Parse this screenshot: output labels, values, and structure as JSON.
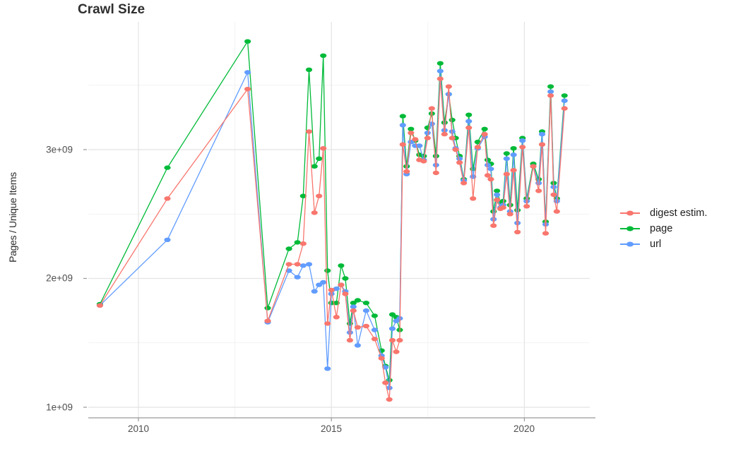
{
  "title": "Crawl Size",
  "y_axis": {
    "label": "Pages / Unique Items",
    "tick_labels": [
      "1e+09",
      "2e+09",
      "3e+09"
    ],
    "tick_values": [
      1,
      2,
      3
    ],
    "minor_tick_values": [
      1.5,
      2.5,
      3.5
    ]
  },
  "x_axis": {
    "tick_labels": [
      "2010",
      "2015",
      "2020"
    ],
    "tick_values": [
      2010,
      2015,
      2020
    ],
    "minor_tick_values": [
      2012.5,
      2017.5
    ]
  },
  "legend": [
    {
      "label": "digest estim.",
      "color": "#F8766D"
    },
    {
      "label": "page",
      "color": "#00BA38"
    },
    {
      "label": "url",
      "color": "#619CFF"
    }
  ],
  "colors": {
    "grid_major": "#e4e4e4",
    "grid_minor": "#efefef",
    "axis_line": "#999999",
    "tick": "#9a9a9a"
  },
  "chart_data": {
    "type": "line",
    "title": "Crawl Size",
    "xlabel": "",
    "ylabel": "Pages / Unique Items",
    "x_unit": "decimal year (crawl date)",
    "y_unit": "1e+09 (billions of pages / unique items)",
    "xlim": [
      2008.7,
      2021.7
    ],
    "ylim": [
      0.92,
      3.99
    ],
    "grid": true,
    "legend_position": "right",
    "marker": "point",
    "x": [
      2009.0,
      2010.75,
      2012.83,
      2013.35,
      2013.9,
      2014.12,
      2014.27,
      2014.42,
      2014.56,
      2014.68,
      2014.79,
      2014.9,
      2015.0,
      2015.13,
      2015.25,
      2015.36,
      2015.48,
      2015.57,
      2015.68,
      2015.9,
      2016.12,
      2016.3,
      2016.4,
      2016.5,
      2016.58,
      2016.68,
      2016.77,
      2016.85,
      2016.95,
      2017.06,
      2017.17,
      2017.28,
      2017.39,
      2017.49,
      2017.6,
      2017.71,
      2017.82,
      2017.93,
      2018.04,
      2018.13,
      2018.22,
      2018.32,
      2018.43,
      2018.56,
      2018.67,
      2018.79,
      2018.97,
      2019.05,
      2019.13,
      2019.2,
      2019.29,
      2019.38,
      2019.45,
      2019.54,
      2019.63,
      2019.72,
      2019.82,
      2019.95,
      2020.06,
      2020.23,
      2020.37,
      2020.46,
      2020.55,
      2020.68,
      2020.76,
      2020.84,
      2021.04
    ],
    "series": [
      {
        "name": "digest estim.",
        "color": "#F8766D",
        "values": [
          1.79,
          2.62,
          3.47,
          1.67,
          2.11,
          2.11,
          2.27,
          3.14,
          2.51,
          2.64,
          3.01,
          1.65,
          1.91,
          1.7,
          1.95,
          1.88,
          1.52,
          1.75,
          1.62,
          1.63,
          1.53,
          1.38,
          1.19,
          1.06,
          1.52,
          1.43,
          1.52,
          3.04,
          2.83,
          3.13,
          3.08,
          2.92,
          2.91,
          3.09,
          3.32,
          2.82,
          3.55,
          3.12,
          3.49,
          3.09,
          3.0,
          2.9,
          2.74,
          3.17,
          2.62,
          3.02,
          3.12,
          2.8,
          2.77,
          2.41,
          2.61,
          2.54,
          2.55,
          2.81,
          2.5,
          2.84,
          2.36,
          3.02,
          2.56,
          2.87,
          2.68,
          3.04,
          2.35,
          3.42,
          2.65,
          2.52,
          3.32
        ]
      },
      {
        "name": "page",
        "color": "#00BA38",
        "values": [
          1.8,
          2.86,
          3.84,
          1.77,
          2.23,
          2.28,
          2.64,
          3.62,
          2.87,
          2.93,
          3.73,
          2.06,
          1.81,
          1.81,
          2.1,
          2.0,
          1.65,
          1.81,
          1.83,
          1.81,
          1.71,
          1.44,
          1.32,
          1.21,
          1.72,
          1.7,
          1.6,
          3.26,
          2.87,
          3.16,
          3.07,
          2.96,
          2.95,
          3.17,
          3.28,
          2.95,
          3.67,
          3.21,
          3.43,
          3.23,
          3.09,
          2.95,
          2.77,
          3.27,
          2.85,
          3.06,
          3.16,
          2.92,
          2.89,
          2.52,
          2.68,
          2.59,
          2.6,
          2.97,
          2.57,
          3.01,
          2.53,
          3.09,
          2.62,
          2.89,
          2.77,
          3.14,
          2.44,
          3.49,
          2.74,
          2.62,
          3.42
        ]
      },
      {
        "name": "url",
        "color": "#619CFF",
        "values": [
          1.79,
          2.3,
          3.6,
          1.66,
          2.06,
          2.01,
          2.1,
          2.11,
          1.9,
          1.95,
          1.97,
          1.3,
          1.88,
          1.92,
          1.95,
          1.9,
          1.58,
          1.78,
          1.48,
          1.75,
          1.6,
          1.4,
          1.31,
          1.15,
          1.61,
          1.67,
          1.69,
          3.19,
          2.81,
          3.06,
          3.03,
          3.03,
          2.92,
          3.13,
          3.2,
          2.88,
          3.61,
          3.15,
          3.43,
          3.14,
          3.01,
          2.93,
          2.76,
          3.22,
          2.79,
          3.01,
          3.1,
          2.88,
          2.85,
          2.46,
          2.65,
          2.55,
          2.57,
          2.93,
          2.52,
          2.96,
          2.43,
          3.07,
          2.6,
          2.87,
          2.74,
          3.12,
          2.42,
          3.45,
          2.71,
          2.6,
          3.38
        ]
      }
    ]
  }
}
